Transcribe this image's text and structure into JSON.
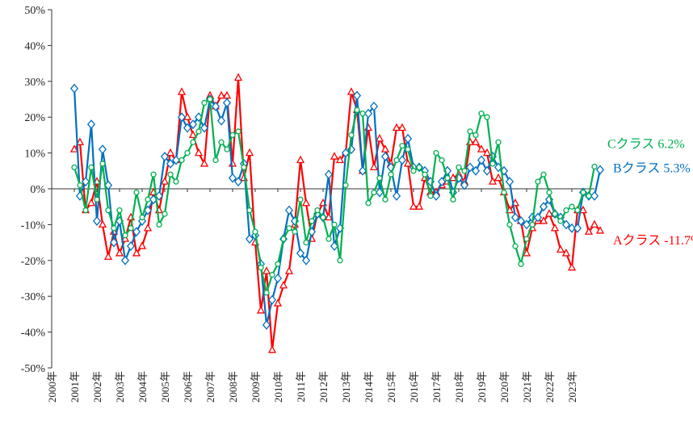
{
  "chart_data": {
    "type": "line",
    "ylim": [
      -50,
      50
    ],
    "ytick_step": 10,
    "y_tick_labels": [
      "50%",
      "40%",
      "30%",
      "20%",
      "10%",
      "0%",
      "-10%",
      "-20%",
      "-30%",
      "-40%",
      "-50%"
    ],
    "x_tick_labels": [
      "2000年",
      "2001年",
      "2002年",
      "2003年",
      "2004年",
      "2005年",
      "2006年",
      "2007年",
      "2008年",
      "2009年",
      "2010年",
      "2011年",
      "2012年",
      "2013年",
      "2014年",
      "2015年",
      "2016年",
      "2017年",
      "2018年",
      "2019年",
      "2020年",
      "2021年",
      "2022年",
      "2023年"
    ],
    "x_start": 2001.0,
    "x_step": 0.25,
    "grid": false,
    "series": [
      {
        "name": "Aクラス",
        "end_label": "Aクラス -11.7%",
        "color": "#ff0000",
        "marker": "triangle",
        "values": [
          11,
          13,
          -6,
          -4,
          2,
          -10,
          -19,
          -12,
          -18,
          -14,
          -8,
          -18,
          -16,
          -11,
          -1,
          -6,
          2,
          10,
          8,
          27,
          20,
          15,
          10,
          7,
          26,
          23,
          26,
          26,
          7,
          31,
          3,
          10,
          -15,
          -34,
          -23,
          -45,
          -32,
          -27,
          -23,
          -10,
          8,
          -4,
          -14,
          -7,
          -4,
          -8,
          9,
          8,
          10,
          27,
          22,
          5,
          17,
          6,
          14,
          11,
          7,
          17,
          17,
          7,
          -5,
          -5,
          3,
          -1,
          -1,
          1,
          2,
          3,
          4,
          2,
          13,
          13,
          11,
          10,
          2,
          3,
          -1,
          -6,
          -4,
          -9,
          -18,
          -11,
          -9,
          -9,
          -7,
          -11,
          -17,
          -18,
          -22,
          -6,
          -6,
          -12,
          -10,
          -11.7
        ]
      },
      {
        "name": "Bクラス",
        "end_label": "Bクラス 5.3%",
        "color": "#0070c0",
        "marker": "diamond",
        "values": [
          28,
          -2,
          2,
          18,
          -9,
          11,
          1,
          -15,
          -9,
          -20,
          -16,
          -12,
          -9,
          -6,
          -3,
          -2,
          9,
          7,
          8,
          20,
          17,
          18,
          20,
          17,
          25,
          23,
          19,
          24,
          3,
          2,
          7,
          -14,
          -13,
          -21,
          -38,
          -31,
          -25,
          -14,
          -6,
          -9,
          -18,
          -20,
          -12,
          -7,
          -8,
          4,
          -16,
          -11,
          10,
          11,
          26,
          5,
          21,
          23,
          -1,
          9,
          6,
          -2,
          8,
          14,
          6,
          6,
          5,
          2,
          -2,
          2,
          5,
          -1,
          3,
          1,
          6,
          5,
          8,
          5,
          9,
          6,
          5,
          2,
          -8,
          -9,
          -10,
          -8,
          -8,
          -5,
          -3,
          -7,
          -8,
          -10,
          -11,
          -11,
          -1,
          -2,
          -2,
          5.3
        ]
      },
      {
        "name": "Cクラス",
        "end_label": "Cクラス 6.2%",
        "color": "#00b050",
        "marker": "circle",
        "values": [
          6,
          1,
          -6,
          6,
          -3,
          7,
          -6,
          -11,
          -6,
          -13,
          -11,
          -1,
          -8,
          -3,
          4,
          -10,
          -7,
          4,
          2,
          8,
          10,
          13,
          16,
          24,
          25,
          8,
          13,
          11,
          15,
          16,
          6,
          -6,
          -12,
          -22,
          -29,
          -24,
          -21,
          -14,
          -11,
          -12,
          -3,
          -15,
          -9,
          -6,
          -8,
          -14,
          -10,
          -20,
          1,
          15,
          22,
          21,
          -4,
          -1,
          3,
          -3,
          4,
          8,
          12,
          11,
          5,
          6,
          4,
          -2,
          10,
          8,
          3,
          -3,
          6,
          5,
          16,
          15,
          21,
          20,
          7,
          13,
          -1,
          -10,
          -16,
          -21,
          -14,
          -10,
          2,
          4,
          -1,
          -7,
          -9,
          -6,
          -5,
          -6,
          -1,
          -2,
          6.2
        ]
      }
    ]
  }
}
